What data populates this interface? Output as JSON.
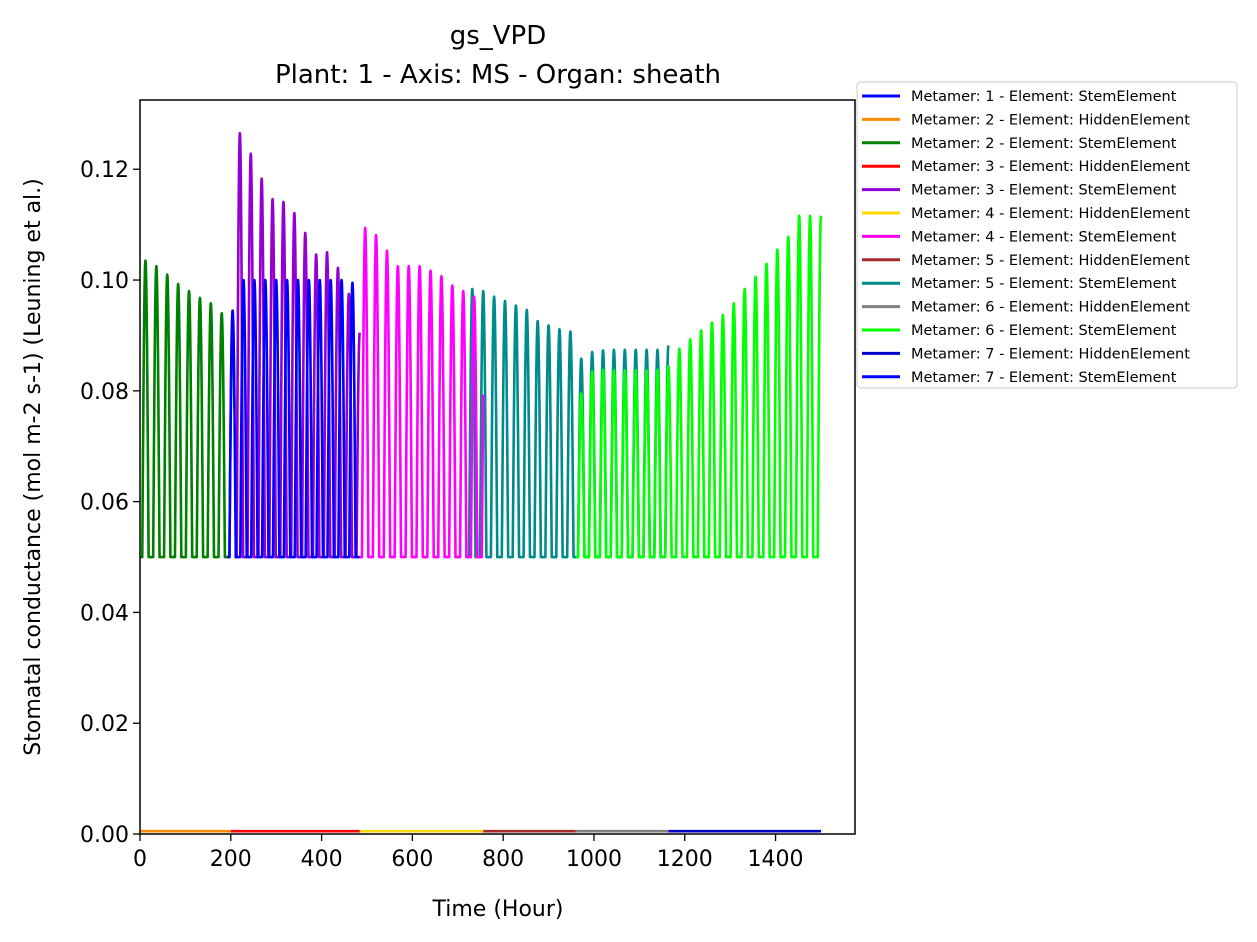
{
  "chart_data": {
    "type": "line",
    "title": "gs_VPD",
    "subtitle": "Plant: 1 - Axis: MS - Organ: sheath",
    "xlabel": "Time (Hour)",
    "ylabel": "Stomatal conductance (mol m-2 s-1) (Leuning et al.)",
    "xlim": [
      0,
      1575
    ],
    "ylim": [
      0,
      0.1325
    ],
    "xticks": [
      0,
      200,
      400,
      600,
      800,
      1000,
      1200,
      1400
    ],
    "yticks": [
      0.0,
      0.02,
      0.04,
      0.06,
      0.08,
      0.1,
      0.12
    ],
    "xtick_labels": [
      "0",
      "200",
      "400",
      "600",
      "800",
      "1000",
      "1200",
      "1400"
    ],
    "ytick_labels": [
      "0.00",
      "0.02",
      "0.04",
      "0.06",
      "0.08",
      "0.10",
      "0.12"
    ],
    "grid": false,
    "legend_position": "outside-upper-right",
    "period_hours": 24,
    "baseline_value": 0.05,
    "series": [
      {
        "name": "Metamer: 1 - Element: StemElement",
        "color": "#0000ff",
        "kind": "oscillation",
        "x_range": [
          192,
          484
        ],
        "peaks": [
          0.0945,
          0.1,
          0.1,
          0.1,
          0.1,
          0.1,
          0.1,
          0.1,
          0.1,
          0.1,
          0.1,
          0.0995,
          0.0995
        ]
      },
      {
        "name": "Metamer: 2 - Element: HiddenElement",
        "color": "#ff8c00",
        "kind": "flat",
        "x_range": [
          0,
          200
        ],
        "value": 0.0005
      },
      {
        "name": "Metamer: 2 - Element: StemElement",
        "color": "#008000",
        "kind": "oscillation",
        "x_range": [
          0,
          208
        ],
        "peaks": [
          0.1035,
          0.1025,
          0.101,
          0.0993,
          0.098,
          0.0968,
          0.0958,
          0.094,
          0.093
        ]
      },
      {
        "name": "Metamer: 3 - Element: HiddenElement",
        "color": "#ff0000",
        "kind": "flat",
        "x_range": [
          200,
          484
        ],
        "value": 0.0005
      },
      {
        "name": "Metamer: 3 - Element: StemElement",
        "color": "#9400d3",
        "kind": "oscillation",
        "x_range": [
          208,
          484
        ],
        "peaks": [
          0.1265,
          0.1228,
          0.1183,
          0.1146,
          0.1141,
          0.1121,
          0.1085,
          0.1046,
          0.105,
          0.1022,
          0.0975,
          0.0905
        ]
      },
      {
        "name": "Metamer: 4 - Element: HiddenElement",
        "color": "#ffd700",
        "kind": "flat",
        "x_range": [
          484,
          756
        ],
        "value": 0.0005
      },
      {
        "name": "Metamer: 4 - Element: StemElement",
        "color": "#ff00ff",
        "kind": "oscillation",
        "x_range": [
          484,
          756
        ],
        "peaks": [
          0.1094,
          0.1081,
          0.1053,
          0.1025,
          0.1025,
          0.1025,
          0.1017,
          0.1007,
          0.099,
          0.098,
          0.097
        ]
      },
      {
        "name": "Metamer: 5 - Element: HiddenElement",
        "color": "#a52a2a",
        "kind": "flat",
        "x_range": [
          756,
          960
        ],
        "value": 0.0005
      },
      {
        "name": "Metamer: 5 - Element: StemElement",
        "color": "#008b8b",
        "kind": "oscillation",
        "x_range": [
          720,
          1164
        ],
        "peaks": [
          0.0984,
          0.098,
          0.097,
          0.0962,
          0.0954,
          0.0946,
          0.0926,
          0.0918,
          0.0911,
          0.0907,
          0.0858,
          0.087,
          0.0873,
          0.0874,
          0.0874,
          0.0874,
          0.0874,
          0.0874,
          0.0882
        ]
      },
      {
        "name": "Metamer: 6 - Element: HiddenElement",
        "color": "#808080",
        "kind": "flat",
        "x_range": [
          960,
          1164
        ],
        "value": 0.0005
      },
      {
        "name": "Metamer: 6 - Element: StemElement",
        "color": "#00ff00",
        "kind": "oscillation",
        "x_range": [
          960,
          1500
        ],
        "peaks": [
          0.0795,
          0.0835,
          0.0838,
          0.0837,
          0.0837,
          0.0837,
          0.0837,
          0.0838,
          0.0845,
          0.0876,
          0.0893,
          0.0909,
          0.0923,
          0.0937,
          0.0958,
          0.0984,
          0.1006,
          0.1029,
          0.1055,
          0.1078,
          0.1116
        ]
      },
      {
        "name": "Metamer: 7 - Element: HiddenElement",
        "color": "#0000cd",
        "kind": "flat",
        "x_range": [
          1164,
          1500
        ],
        "value": 0.0005
      },
      {
        "name": "Metamer: 7 - Element: StemElement",
        "color": "#0000ff",
        "kind": "oscillation",
        "x_range": [
          1164,
          1500
        ],
        "peaks": [
          0.0742,
          0.0749,
          0.0759,
          0.0776,
          0.0786,
          0.0805,
          0.0825,
          0.0843,
          0.0862,
          0.088,
          0.0901,
          0.0929,
          0.095,
          0.0885
        ]
      }
    ]
  }
}
